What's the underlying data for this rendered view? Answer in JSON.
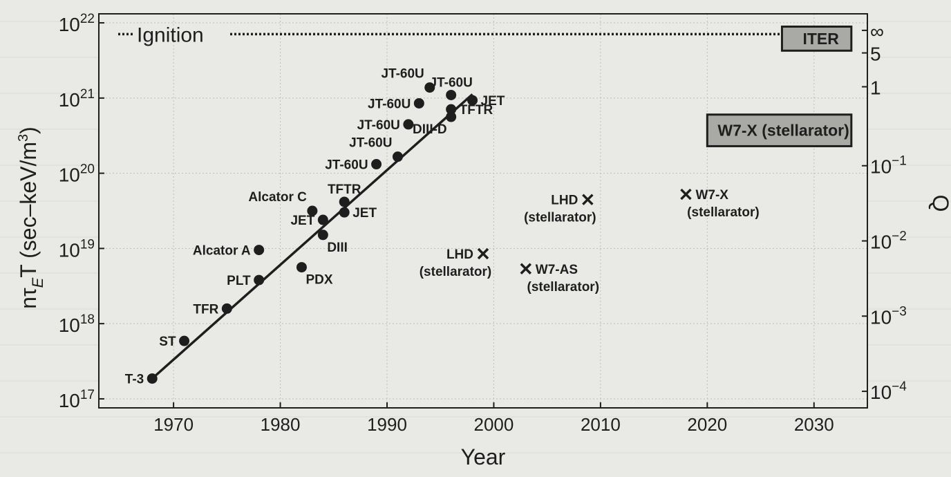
{
  "chart_data": {
    "type": "scatter",
    "xlabel": "Year",
    "ylabel_main": "nτ",
    "ylabel_sub": "E",
    "ylabel_rest": "T (sec–keV/m",
    "ylabel_sup": "3",
    "ylabel_close": ")",
    "y2label": "Q",
    "xlim": [
      1963,
      2035
    ],
    "ylim_log10": [
      16.88,
      22.12
    ],
    "y_scale": "log",
    "x_ticks": [
      1970,
      1980,
      1990,
      2000,
      2010,
      2020,
      2030
    ],
    "x_tick_labels": [
      "1970",
      "1980",
      "1990",
      "2000",
      "2010",
      "2020",
      "2030"
    ],
    "y_ticks": [
      {
        "exp": 17,
        "label_base": "10",
        "label_exp": "17"
      },
      {
        "exp": 18,
        "label_base": "10",
        "label_exp": "18"
      },
      {
        "exp": 19,
        "label_base": "10",
        "label_exp": "19"
      },
      {
        "exp": 20,
        "label_base": "10",
        "label_exp": "20"
      },
      {
        "exp": 21,
        "label_base": "10",
        "label_exp": "21"
      },
      {
        "exp": 22,
        "label_base": "10",
        "label_exp": "22"
      }
    ],
    "y2_ticks": [
      {
        "at_log10": 17.1,
        "label_base": "10",
        "label_exp": "−4"
      },
      {
        "at_log10": 18.1,
        "label_base": "10",
        "label_exp": "−3"
      },
      {
        "at_log10": 19.1,
        "label_base": "10",
        "label_exp": "−2"
      },
      {
        "at_log10": 20.1,
        "label_base": "10",
        "label_exp": "−1"
      },
      {
        "at_log10": 21.15,
        "label_base": "1",
        "label_exp": ""
      },
      {
        "at_log10": 21.6,
        "label_base": "5",
        "label_exp": ""
      },
      {
        "at_log10": 21.9,
        "label_base": "∞",
        "label_exp": ""
      }
    ],
    "grid": true,
    "ignition": {
      "label": "Ignition",
      "log10_value": 21.85
    },
    "trend_line": {
      "x": [
        1968,
        1998
      ],
      "log10_y": [
        17.27,
        21.05
      ]
    },
    "tokamaks": [
      {
        "label": "T-3",
        "year": 1968,
        "log10_value": 17.27,
        "label_side": "left"
      },
      {
        "label": "ST",
        "year": 1971,
        "log10_value": 17.77,
        "label_side": "left"
      },
      {
        "label": "TFR",
        "year": 1975,
        "log10_value": 18.2,
        "label_side": "left"
      },
      {
        "label": "PLT",
        "year": 1978,
        "log10_value": 18.58,
        "label_side": "left"
      },
      {
        "label": "Alcator A",
        "year": 1978,
        "log10_value": 18.98,
        "label_side": "left"
      },
      {
        "label": "PDX",
        "year": 1982,
        "log10_value": 18.75,
        "label_side": "below-right"
      },
      {
        "label": "Alcator C",
        "year": 1983,
        "log10_value": 19.5,
        "label_side": "above-left"
      },
      {
        "label": "JET",
        "year": 1984,
        "log10_value": 19.38,
        "label_side": "left"
      },
      {
        "label": "DIII",
        "year": 1984,
        "log10_value": 19.18,
        "label_side": "below-right"
      },
      {
        "label": "JET",
        "year": 1986,
        "log10_value": 19.48,
        "label_side": "right"
      },
      {
        "label": "TFTR",
        "year": 1986,
        "log10_value": 19.62,
        "label_side": "above"
      },
      {
        "label": "JT-60U",
        "year": 1989,
        "log10_value": 20.12,
        "label_side": "left"
      },
      {
        "label": "JT-60U",
        "year": 1991,
        "log10_value": 20.22,
        "label_side": "above-left"
      },
      {
        "label": "JT-60U",
        "year": 1992,
        "log10_value": 20.65,
        "label_side": "left"
      },
      {
        "label": "JT-60U",
        "year": 1993,
        "log10_value": 20.93,
        "label_side": "left"
      },
      {
        "label": "JT-60U",
        "year": 1994,
        "log10_value": 21.14,
        "label_side": "above-left"
      },
      {
        "label": "JT-60U",
        "year": 1996,
        "log10_value": 21.04,
        "label_side": "above"
      },
      {
        "label": "DIII-D",
        "year": 1996,
        "log10_value": 20.75,
        "label_side": "below-left"
      },
      {
        "label": "TFTR",
        "year": 1996,
        "log10_value": 20.85,
        "label_side": "right"
      },
      {
        "label": "JET",
        "year": 1998,
        "log10_value": 20.97,
        "label_side": "right"
      }
    ],
    "stellarators": [
      {
        "label": "LHD",
        "label2": "(stellarator)",
        "year": 1999,
        "log10_value": 18.93,
        "label_side": "left"
      },
      {
        "label": "W7-AS",
        "label2": "(stellarator)",
        "year": 2003,
        "log10_value": 18.73,
        "label_side": "right"
      },
      {
        "label": "LHD",
        "label2": "(stellarator)",
        "year": 2008.8,
        "log10_value": 19.65,
        "label_side": "left"
      },
      {
        "label": "W7-X",
        "label2": "(stellarator)",
        "year": 2018,
        "log10_value": 19.72,
        "label_side": "right"
      }
    ],
    "target_boxes": [
      {
        "label": "ITER",
        "x_from": 2027,
        "x_to": 2033.5,
        "log10_from": 21.63,
        "log10_to": 21.95
      },
      {
        "label": "W7-X (stellarator)",
        "x_from": 2020,
        "x_to": 2033.5,
        "log10_from": 20.36,
        "log10_to": 20.78
      }
    ]
  },
  "colors": {
    "background": "#e9e9e6",
    "ink": "#1e1e1e",
    "grid": "#bdbdba",
    "box_fill": "#a9a9a6"
  }
}
